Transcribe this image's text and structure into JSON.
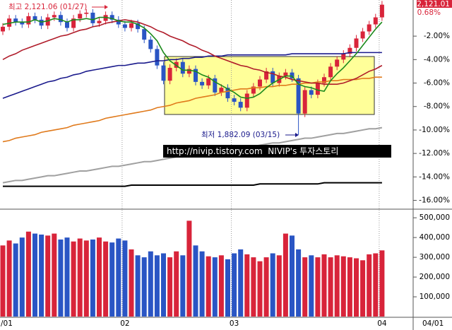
{
  "chart_data": [
    {
      "type": "candlestick",
      "categories": [
        "/01",
        null,
        null,
        null,
        null,
        null,
        null,
        null,
        null,
        null,
        null,
        null,
        null,
        null,
        null,
        null,
        null,
        null,
        null,
        "02",
        null,
        null,
        null,
        null,
        null,
        null,
        null,
        null,
        null,
        null,
        null,
        null,
        null,
        null,
        null,
        null,
        "03",
        null,
        null,
        null,
        null,
        null,
        null,
        null,
        null,
        null,
        null,
        null,
        null,
        null,
        null,
        null,
        null,
        null,
        null,
        null,
        null,
        null,
        null,
        "04"
      ],
      "open": [
        -1.6,
        -1.2,
        -0.5,
        -0.8,
        -1.0,
        -0.3,
        -0.6,
        -1.1,
        -0.4,
        -0.2,
        -0.8,
        -1.3,
        -0.5,
        -0.1,
        0.0,
        -0.9,
        -0.7,
        -0.2,
        -0.6,
        -1.0,
        -1.3,
        -0.9,
        -1.4,
        -2.3,
        -3.1,
        -4.5,
        -5.8,
        -4.7,
        -4.2,
        -5.2,
        -4.8,
        -5.9,
        -6.2,
        -5.6,
        -6.8,
        -6.4,
        -7.3,
        -7.6,
        -8.1,
        -6.9,
        -6.3,
        -5.7,
        -5.0,
        -6.0,
        -5.4,
        -5.1,
        -5.6,
        -8.6,
        -6.6,
        -7.0,
        -6.0,
        -5.5,
        -4.6,
        -4.0,
        -3.5,
        -3.0,
        -2.2,
        -1.6,
        -1.0,
        -0.4
      ],
      "high": [
        -0.9,
        -0.2,
        -0.2,
        -0.5,
        0.0,
        0.0,
        -0.3,
        -0.1,
        0.1,
        0.1,
        -0.5,
        -0.2,
        0.2,
        0.3,
        0.3,
        -0.4,
        0.1,
        0.1,
        -0.3,
        -0.7,
        -0.6,
        -0.6,
        -1.1,
        -2.0,
        -2.8,
        -4.2,
        -4.4,
        -3.9,
        -3.9,
        -4.5,
        -4.5,
        -5.6,
        -5.3,
        -5.3,
        -6.1,
        -6.1,
        -7.0,
        -7.3,
        -6.6,
        -6.0,
        -5.4,
        -4.7,
        -4.7,
        -5.1,
        -4.8,
        -4.8,
        -5.3,
        -6.3,
        -6.3,
        -5.7,
        -5.2,
        -4.3,
        -3.7,
        -3.2,
        -2.7,
        -1.9,
        -1.3,
        -0.7,
        -0.1,
        1.0
      ],
      "low": [
        -1.9,
        -1.5,
        -1.1,
        -1.3,
        -1.3,
        -0.9,
        -1.4,
        -1.4,
        -0.7,
        -1.1,
        -1.6,
        -1.6,
        -0.8,
        -0.4,
        -1.2,
        -1.2,
        -1.0,
        -0.9,
        -1.3,
        -1.6,
        -1.6,
        -1.7,
        -2.6,
        -3.4,
        -4.8,
        -6.1,
        -6.1,
        -5.0,
        -5.5,
        -5.5,
        -6.2,
        -6.5,
        -6.5,
        -7.1,
        -7.1,
        -7.6,
        -7.9,
        -8.4,
        -8.4,
        -7.2,
        -6.6,
        -6.0,
        -6.3,
        -6.3,
        -5.7,
        -5.9,
        -10.4,
        -8.9,
        -7.3,
        -7.3,
        -6.3,
        -5.8,
        -4.9,
        -4.3,
        -3.8,
        -3.3,
        -2.5,
        -1.9,
        -1.3,
        -0.7
      ],
      "close": [
        -1.2,
        -0.5,
        -0.8,
        -1.0,
        -0.3,
        -0.6,
        -1.1,
        -0.4,
        -0.2,
        -0.8,
        -1.3,
        -0.5,
        -0.1,
        0.0,
        -0.9,
        -0.7,
        -0.2,
        -0.6,
        -1.0,
        -1.3,
        -0.9,
        -1.4,
        -2.3,
        -3.1,
        -4.5,
        -5.8,
        -4.7,
        -4.2,
        -5.2,
        -4.8,
        -5.9,
        -6.2,
        -5.6,
        -6.8,
        -6.4,
        -7.3,
        -7.6,
        -8.1,
        -6.9,
        -6.3,
        -5.7,
        -5.0,
        -6.0,
        -5.4,
        -5.1,
        -5.6,
        -8.6,
        -6.6,
        -7.0,
        -6.0,
        -5.5,
        -4.6,
        -4.0,
        -3.5,
        -3.0,
        -2.2,
        -1.6,
        -1.0,
        -0.4,
        0.68
      ],
      "up_color": "#d8243a",
      "down_color": "#2a55c4",
      "lines": [
        {
          "color": "#000000",
          "values": [
            -14.8,
            -14.8,
            -14.8,
            -14.8,
            -14.8,
            -14.8,
            -14.8,
            -14.8,
            -14.8,
            -14.8,
            -14.8,
            -14.8,
            -14.8,
            -14.8,
            -14.8,
            -14.8,
            -14.8,
            -14.8,
            -14.8,
            -14.8,
            -14.7,
            -14.7,
            -14.7,
            -14.7,
            -14.7,
            -14.7,
            -14.7,
            -14.7,
            -14.7,
            -14.7,
            -14.7,
            -14.7,
            -14.7,
            -14.7,
            -14.7,
            -14.7,
            -14.7,
            -14.7,
            -14.7,
            -14.7,
            -14.6,
            -14.6,
            -14.6,
            -14.6,
            -14.6,
            -14.6,
            -14.6,
            -14.6,
            -14.6,
            -14.6,
            -14.5,
            -14.5,
            -14.5,
            -14.5,
            -14.5,
            -14.5,
            -14.5,
            -14.5,
            -14.5,
            -14.5
          ]
        },
        {
          "color": "#a0a0a0",
          "values": [
            -14.5,
            -14.4,
            -14.3,
            -14.3,
            -14.2,
            -14.1,
            -14.0,
            -13.9,
            -13.9,
            -13.8,
            -13.7,
            -13.6,
            -13.5,
            -13.5,
            -13.4,
            -13.3,
            -13.2,
            -13.1,
            -13.1,
            -13.0,
            -12.9,
            -12.8,
            -12.7,
            -12.7,
            -12.6,
            -12.5,
            -12.4,
            -12.3,
            -12.3,
            -12.2,
            -12.1,
            -12.0,
            -11.9,
            -11.9,
            -11.8,
            -11.7,
            -11.6,
            -11.5,
            -11.5,
            -11.4,
            -11.3,
            -11.2,
            -11.1,
            -11.1,
            -11.0,
            -10.9,
            -10.8,
            -10.7,
            -10.7,
            -10.6,
            -10.5,
            -10.4,
            -10.3,
            -10.3,
            -10.2,
            -10.1,
            -10.0,
            -9.9,
            -9.9,
            -9.8
          ]
        },
        {
          "color": "#e07a1c",
          "values": [
            -11.0,
            -10.9,
            -10.7,
            -10.6,
            -10.5,
            -10.4,
            -10.2,
            -10.1,
            -10.0,
            -9.9,
            -9.8,
            -9.6,
            -9.5,
            -9.4,
            -9.3,
            -9.2,
            -9.0,
            -8.9,
            -8.8,
            -8.7,
            -8.6,
            -8.5,
            -8.4,
            -8.3,
            -8.1,
            -8.0,
            -7.9,
            -7.7,
            -7.6,
            -7.5,
            -7.3,
            -7.2,
            -7.1,
            -7.0,
            -6.8,
            -6.7,
            -6.6,
            -6.5,
            -6.5,
            -6.4,
            -6.4,
            -6.3,
            -6.3,
            -6.2,
            -6.2,
            -6.1,
            -6.1,
            -6.0,
            -6.0,
            -5.9,
            -5.9,
            -5.8,
            -5.8,
            -5.7,
            -5.7,
            -5.7,
            -5.6,
            -5.6,
            -5.5,
            -5.5
          ]
        },
        {
          "color": "#1a1a8c",
          "values": [
            -7.3,
            -7.1,
            -6.9,
            -6.7,
            -6.5,
            -6.3,
            -6.1,
            -5.9,
            -5.8,
            -5.6,
            -5.5,
            -5.3,
            -5.2,
            -5.0,
            -4.9,
            -4.8,
            -4.7,
            -4.6,
            -4.5,
            -4.5,
            -4.4,
            -4.3,
            -4.3,
            -4.2,
            -4.1,
            -4.1,
            -4.0,
            -4.0,
            -3.9,
            -3.9,
            -3.8,
            -3.8,
            -3.7,
            -3.7,
            -3.7,
            -3.6,
            -3.6,
            -3.6,
            -3.6,
            -3.6,
            -3.6,
            -3.6,
            -3.6,
            -3.6,
            -3.6,
            -3.5,
            -3.5,
            -3.5,
            -3.5,
            -3.5,
            -3.5,
            -3.5,
            -3.5,
            -3.5,
            -3.4,
            -3.4,
            -3.4,
            -3.4,
            -3.4,
            -3.4
          ]
        },
        {
          "color": "#b01c2a",
          "values": [
            -4.0,
            -3.7,
            -3.5,
            -3.2,
            -3.0,
            -2.8,
            -2.6,
            -2.4,
            -2.2,
            -2.0,
            -1.9,
            -1.7,
            -1.5,
            -1.4,
            -1.2,
            -1.1,
            -0.9,
            -0.8,
            -0.7,
            -0.6,
            -0.7,
            -0.8,
            -1.0,
            -1.2,
            -1.5,
            -1.7,
            -2.0,
            -2.2,
            -2.4,
            -2.7,
            -2.9,
            -3.2,
            -3.4,
            -3.7,
            -3.9,
            -4.1,
            -4.3,
            -4.5,
            -4.6,
            -4.8,
            -4.9,
            -5.1,
            -5.2,
            -5.4,
            -5.5,
            -5.7,
            -5.8,
            -5.9,
            -6.0,
            -6.0,
            -6.1,
            -6.1,
            -6.1,
            -6.0,
            -5.8,
            -5.6,
            -5.3,
            -5.0,
            -4.8,
            -4.5
          ]
        },
        {
          "color": "#1c8a1c",
          "values": [
            -1.0,
            -0.9,
            -0.8,
            -0.8,
            -0.8,
            -0.6,
            -0.8,
            -0.7,
            -0.5,
            -0.6,
            -0.8,
            -0.6,
            -0.6,
            -0.5,
            -0.6,
            -0.4,
            -0.4,
            -0.5,
            -0.7,
            -0.8,
            -0.8,
            -1.0,
            -1.3,
            -1.8,
            -2.4,
            -3.4,
            -4.1,
            -4.5,
            -4.9,
            -4.9,
            -5.0,
            -5.3,
            -5.5,
            -5.9,
            -6.2,
            -6.5,
            -6.8,
            -7.2,
            -7.3,
            -7.2,
            -6.9,
            -6.4,
            -6.0,
            -5.7,
            -5.4,
            -5.4,
            -6.1,
            -6.3,
            -6.4,
            -6.6,
            -6.7,
            -5.8,
            -5.2,
            -4.7,
            -4.1,
            -3.5,
            -2.8,
            -2.1,
            -1.4,
            -0.8
          ]
        }
      ],
      "ylim": [
        -16.69,
        1.08
      ],
      "yticks": [
        {
          "value": -2,
          "label": "-2.00%"
        },
        {
          "value": -4,
          "label": "-4.00%"
        },
        {
          "value": -6,
          "label": "-6.00%"
        },
        {
          "value": -8,
          "label": "-8.00%"
        },
        {
          "value": -10,
          "label": "-10.00%"
        },
        {
          "value": -12,
          "label": "-12.00%"
        },
        {
          "value": -14,
          "label": "-14.00%"
        },
        {
          "value": -16,
          "label": "-16.00%"
        }
      ],
      "high_annotation": "최고 2,121.06 (01/27)",
      "low_annotation": "최저 1,882.09 (03/15)",
      "last_price_label": "2,121.01",
      "last_change_label": "0.68%",
      "x_axis_end_label": "04/01"
    },
    {
      "type": "bar",
      "values": [
        360000,
        385000,
        370000,
        400000,
        430000,
        420000,
        415000,
        410000,
        420000,
        390000,
        400000,
        380000,
        395000,
        385000,
        390000,
        400000,
        380000,
        375000,
        395000,
        385000,
        340000,
        310000,
        300000,
        330000,
        310000,
        320000,
        300000,
        330000,
        310000,
        485000,
        360000,
        330000,
        305000,
        300000,
        310000,
        290000,
        320000,
        340000,
        315000,
        300000,
        280000,
        300000,
        320000,
        310000,
        420000,
        410000,
        340000,
        300000,
        310000,
        300000,
        315000,
        300000,
        310000,
        305000,
        300000,
        295000,
        285000,
        315000,
        320000,
        335000
      ],
      "ylim": [
        0,
        540000
      ],
      "yticks": [
        {
          "value": 100000,
          "label": "100,000"
        },
        {
          "value": 200000,
          "label": "200,000"
        },
        {
          "value": 300000,
          "label": "300,000"
        },
        {
          "value": 400000,
          "label": "400,000"
        },
        {
          "value": 500000,
          "label": "500,000"
        }
      ]
    }
  ],
  "watermark": "http://nivip.tistory.com  NIVIP's 투자스토리"
}
